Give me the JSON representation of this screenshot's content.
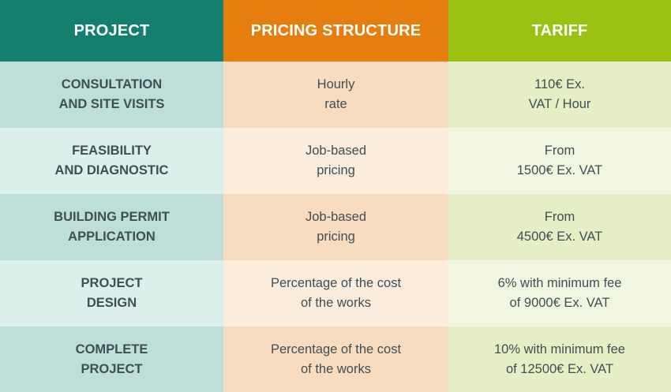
{
  "header": {
    "project": "PROJECT",
    "pricing": "PRICING STRUCTURE",
    "tariff": "TARIFF"
  },
  "rows": [
    {
      "project": [
        "CONSULTATION",
        "AND SITE VISITS"
      ],
      "pricing": [
        "Hourly",
        "rate"
      ],
      "tariff": [
        "110€ Ex.",
        "VAT / Hour"
      ]
    },
    {
      "project": [
        "FEASIBILITY",
        "AND DIAGNOSTIC"
      ],
      "pricing": [
        "Job-based",
        "pricing"
      ],
      "tariff": [
        "From",
        "1500€ Ex. VAT"
      ]
    },
    {
      "project": [
        "BUILDING PERMIT",
        "APPLICATION"
      ],
      "pricing": [
        "Job-based",
        "pricing"
      ],
      "tariff": [
        "From",
        "4500€ Ex. VAT"
      ]
    },
    {
      "project": [
        "PROJECT",
        "DESIGN"
      ],
      "pricing": [
        "Percentage of the cost",
        "of the works"
      ],
      "tariff": [
        "6% with minimum fee",
        "of 9000€ Ex. VAT"
      ]
    },
    {
      "project": [
        "COMPLETE",
        "PROJECT"
      ],
      "pricing": [
        "Percentage of the cost",
        "of the works"
      ],
      "tariff": [
        "10% with minimum fee",
        "of 12500€ Ex. VAT"
      ]
    }
  ],
  "colors": {
    "header_project": "#147f6e",
    "header_pricing": "#e67d0f",
    "header_tariff": "#9ac212"
  }
}
